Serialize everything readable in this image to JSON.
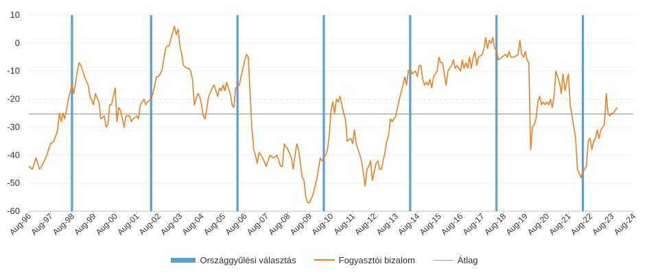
{
  "chart_data": {
    "type": "line",
    "title": "",
    "xlabel": "",
    "ylabel": "",
    "ylim": [
      -60,
      10
    ],
    "y_ticks": [
      "10",
      "0",
      "-10",
      "-20",
      "-30",
      "-40",
      "-50",
      "-60"
    ],
    "x_ticks": [
      "Aug-96",
      "Aug-97",
      "Aug-98",
      "Aug-99",
      "Aug-00",
      "Aug-01",
      "Aug-02",
      "Aug-03",
      "Aug-04",
      "Aug-05",
      "Aug-06",
      "Aug-07",
      "Aug-08",
      "Aug-09",
      "Aug-10",
      "Aug-11",
      "Aug-12",
      "Aug-13",
      "Aug-14",
      "Aug-15",
      "Aug-16",
      "Aug-17",
      "Aug-18",
      "Aug-19",
      "Aug-20",
      "Aug-21",
      "Aug-22",
      "Aug-23",
      "Aug-24"
    ],
    "grid": "horizontal",
    "legend_position": "bottom",
    "colors": {
      "elections": "#5a9fd4",
      "confidence": "#f07d1e",
      "average": "#a6a6a6"
    },
    "series": [
      {
        "name": "Fogyasztói bizalom",
        "points": [
          [
            "1996-08",
            -44
          ],
          [
            "1996-10",
            -45
          ],
          [
            "1996-12",
            -41
          ],
          [
            "1997-02",
            -45
          ],
          [
            "1997-04",
            -43
          ],
          [
            "1997-06",
            -40
          ],
          [
            "1997-08",
            -36
          ],
          [
            "1997-10",
            -35
          ],
          [
            "1997-12",
            -31
          ],
          [
            "1998-01",
            -25
          ],
          [
            "1998-02",
            -28
          ],
          [
            "1998-03",
            -25
          ],
          [
            "1998-04",
            -27
          ],
          [
            "1998-06",
            -20
          ],
          [
            "1998-08",
            -15
          ],
          [
            "1998-09",
            -18
          ],
          [
            "1998-10",
            -14
          ],
          [
            "1998-11",
            -10
          ],
          [
            "1998-12",
            -7
          ],
          [
            "1999-01",
            -8
          ],
          [
            "1999-03",
            -12
          ],
          [
            "1999-05",
            -15
          ],
          [
            "1999-06",
            -19
          ],
          [
            "1999-08",
            -22
          ],
          [
            "1999-09",
            -18
          ],
          [
            "1999-11",
            -21
          ],
          [
            "1999-12",
            -27
          ],
          [
            "2000-02",
            -26
          ],
          [
            "2000-03",
            -30
          ],
          [
            "2000-04",
            -29
          ],
          [
            "2000-05",
            -22
          ],
          [
            "2000-06",
            -22
          ],
          [
            "2000-07",
            -19
          ],
          [
            "2000-08",
            -16
          ],
          [
            "2000-09",
            -28
          ],
          [
            "2000-10",
            -23
          ],
          [
            "2000-11",
            -24
          ],
          [
            "2000-12",
            -27
          ],
          [
            "2001-01",
            -30
          ],
          [
            "2001-02",
            -26
          ],
          [
            "2001-04",
            -26
          ],
          [
            "2001-05",
            -28
          ],
          [
            "2001-06",
            -27
          ],
          [
            "2001-08",
            -26
          ],
          [
            "2001-09",
            -27
          ],
          [
            "2001-10",
            -22
          ],
          [
            "2001-12",
            -20
          ],
          [
            "2002-01",
            -22
          ],
          [
            "2002-02",
            -21
          ],
          [
            "2002-04",
            -20
          ],
          [
            "2002-05",
            -18
          ],
          [
            "2002-07",
            -12
          ],
          [
            "2002-08",
            -12
          ],
          [
            "2002-10",
            -10
          ],
          [
            "2002-12",
            -2
          ],
          [
            "2003-01",
            -1
          ],
          [
            "2003-02",
            -1
          ],
          [
            "2003-04",
            4
          ],
          [
            "2003-05",
            6
          ],
          [
            "2003-06",
            3
          ],
          [
            "2003-07",
            5
          ],
          [
            "2003-08",
            -1
          ],
          [
            "2003-09",
            -4
          ],
          [
            "2003-10",
            -8
          ],
          [
            "2003-12",
            -9
          ],
          [
            "2004-01",
            -9
          ],
          [
            "2004-02",
            -10
          ],
          [
            "2004-03",
            -13
          ],
          [
            "2004-04",
            -22
          ],
          [
            "2004-05",
            -20
          ],
          [
            "2004-06",
            -18
          ],
          [
            "2004-07",
            -19
          ],
          [
            "2004-08",
            -22
          ],
          [
            "2004-09",
            -26
          ],
          [
            "2004-10",
            -27
          ],
          [
            "2004-12",
            -19
          ],
          [
            "2005-02",
            -16
          ],
          [
            "2005-03",
            -15
          ],
          [
            "2005-05",
            -19
          ],
          [
            "2005-06",
            -16
          ],
          [
            "2005-07",
            -17
          ],
          [
            "2005-08",
            -15
          ],
          [
            "2005-09",
            -17
          ],
          [
            "2005-10",
            -14
          ],
          [
            "2005-12",
            -18
          ],
          [
            "2006-01",
            -22
          ],
          [
            "2006-02",
            -23
          ],
          [
            "2006-03",
            -16
          ],
          [
            "2006-05",
            -15
          ],
          [
            "2006-06",
            -12
          ],
          [
            "2006-07",
            -9
          ],
          [
            "2006-09",
            -4
          ],
          [
            "2006-10",
            -5
          ],
          [
            "2006-12",
            -30
          ],
          [
            "2007-01",
            -38
          ],
          [
            "2007-02",
            -40
          ],
          [
            "2007-03",
            -43
          ],
          [
            "2007-04",
            -39
          ],
          [
            "2007-06",
            -41
          ],
          [
            "2007-08",
            -44
          ],
          [
            "2007-10",
            -40
          ],
          [
            "2007-12",
            -41
          ],
          [
            "2008-02",
            -40
          ],
          [
            "2008-04",
            -44
          ],
          [
            "2008-05",
            -44
          ],
          [
            "2008-06",
            -36
          ],
          [
            "2008-08",
            -38
          ],
          [
            "2008-10",
            -41
          ],
          [
            "2008-11",
            -45
          ],
          [
            "2008-12",
            -40
          ],
          [
            "2009-01",
            -36
          ],
          [
            "2009-02",
            -38
          ],
          [
            "2009-04",
            -48
          ],
          [
            "2009-05",
            -49
          ],
          [
            "2009-06",
            -55
          ],
          [
            "2009-07",
            -57
          ],
          [
            "2009-08",
            -57
          ],
          [
            "2009-10",
            -54
          ],
          [
            "2009-12",
            -49
          ],
          [
            "2010-01",
            -45
          ],
          [
            "2010-02",
            -41
          ],
          [
            "2010-03",
            -42
          ],
          [
            "2010-05",
            -40
          ],
          [
            "2010-06",
            -38
          ],
          [
            "2010-07",
            -33
          ],
          [
            "2010-08",
            -24
          ],
          [
            "2010-09",
            -21
          ],
          [
            "2010-10",
            -25
          ],
          [
            "2010-11",
            -20
          ],
          [
            "2010-12",
            -21
          ],
          [
            "2011-01",
            -19
          ],
          [
            "2011-03",
            -25
          ],
          [
            "2011-04",
            -27
          ],
          [
            "2011-05",
            -35
          ],
          [
            "2011-07",
            -34
          ],
          [
            "2011-08",
            -36
          ],
          [
            "2011-09",
            -31
          ],
          [
            "2011-10",
            -36
          ],
          [
            "2011-12",
            -40
          ],
          [
            "2012-01",
            -42
          ],
          [
            "2012-03",
            -51
          ],
          [
            "2012-04",
            -45
          ],
          [
            "2012-05",
            -44
          ],
          [
            "2012-06",
            -42
          ],
          [
            "2012-07",
            -49
          ],
          [
            "2012-09",
            -43
          ],
          [
            "2012-10",
            -42
          ],
          [
            "2012-11",
            -45
          ],
          [
            "2012-12",
            -45
          ],
          [
            "2013-02",
            -39
          ],
          [
            "2013-03",
            -35
          ],
          [
            "2013-04",
            -33
          ],
          [
            "2013-05",
            -27
          ],
          [
            "2013-06",
            -28
          ],
          [
            "2013-08",
            -26
          ],
          [
            "2013-10",
            -20
          ],
          [
            "2013-12",
            -15
          ],
          [
            "2014-01",
            -12
          ],
          [
            "2014-02",
            -15
          ],
          [
            "2014-03",
            -10
          ],
          [
            "2014-04",
            -9
          ],
          [
            "2014-05",
            -11
          ],
          [
            "2014-07",
            -10
          ],
          [
            "2014-08",
            -12
          ],
          [
            "2014-09",
            -8
          ],
          [
            "2014-10",
            -8
          ],
          [
            "2014-11",
            -13
          ],
          [
            "2014-12",
            -15
          ],
          [
            "2015-01",
            -14
          ],
          [
            "2015-02",
            -15
          ],
          [
            "2015-03",
            -13
          ],
          [
            "2015-04",
            -16
          ],
          [
            "2015-05",
            -12
          ],
          [
            "2015-07",
            -10
          ],
          [
            "2015-08",
            -5
          ],
          [
            "2015-09",
            -7
          ],
          [
            "2015-10",
            -7
          ],
          [
            "2015-12",
            -15
          ],
          [
            "2016-01",
            -10
          ],
          [
            "2016-03",
            -8
          ],
          [
            "2016-04",
            -6
          ],
          [
            "2016-05",
            -9
          ],
          [
            "2016-06",
            -8
          ],
          [
            "2016-08",
            -10
          ],
          [
            "2016-09",
            -6
          ],
          [
            "2016-10",
            -9
          ],
          [
            "2016-11",
            -7
          ],
          [
            "2016-12",
            -9
          ],
          [
            "2017-01",
            -5
          ],
          [
            "2017-02",
            -9
          ],
          [
            "2017-03",
            -5
          ],
          [
            "2017-04",
            -3
          ],
          [
            "2017-05",
            -8
          ],
          [
            "2017-06",
            -5
          ],
          [
            "2017-08",
            -4
          ],
          [
            "2017-09",
            -2
          ],
          [
            "2017-10",
            2
          ],
          [
            "2017-11",
            -2
          ],
          [
            "2017-12",
            1
          ],
          [
            "2018-01",
            0
          ],
          [
            "2018-02",
            2
          ],
          [
            "2018-03",
            -2
          ],
          [
            "2018-04",
            -2
          ],
          [
            "2018-05",
            -6
          ],
          [
            "2018-07",
            -5
          ],
          [
            "2018-09",
            -4
          ],
          [
            "2018-10",
            -5
          ],
          [
            "2018-11",
            -3
          ],
          [
            "2018-12",
            -5
          ],
          [
            "2019-02",
            -5
          ],
          [
            "2019-04",
            -4
          ],
          [
            "2019-05",
            1
          ],
          [
            "2019-06",
            -4
          ],
          [
            "2019-07",
            -5
          ],
          [
            "2019-08",
            -3
          ],
          [
            "2019-09",
            -6
          ],
          [
            "2019-10",
            -7
          ],
          [
            "2019-11",
            -38
          ],
          [
            "2019-12",
            -30
          ],
          [
            "2020-01",
            -29
          ],
          [
            "2020-02",
            -27
          ],
          [
            "2020-03",
            -21
          ],
          [
            "2020-04",
            -19
          ],
          [
            "2020-05",
            -22
          ],
          [
            "2020-06",
            -21
          ],
          [
            "2020-07",
            -22
          ],
          [
            "2020-08",
            -21
          ],
          [
            "2020-09",
            -22
          ],
          [
            "2020-10",
            -20
          ],
          [
            "2020-11",
            -23
          ],
          [
            "2020-12",
            -19
          ],
          [
            "2021-01",
            -10
          ],
          [
            "2021-03",
            -14
          ],
          [
            "2021-04",
            -18
          ],
          [
            "2021-05",
            -11
          ],
          [
            "2021-06",
            -17
          ],
          [
            "2021-07",
            -14
          ],
          [
            "2021-08",
            -11
          ],
          [
            "2021-09",
            -22
          ],
          [
            "2021-10",
            -26
          ],
          [
            "2021-12",
            -34
          ],
          [
            "2022-01",
            -45
          ],
          [
            "2022-03",
            -48
          ],
          [
            "2022-04",
            -46
          ],
          [
            "2022-06",
            -44
          ],
          [
            "2022-07",
            -35
          ],
          [
            "2022-08",
            -34
          ],
          [
            "2022-09",
            -38
          ],
          [
            "2022-10",
            -35
          ],
          [
            "2022-11",
            -34
          ],
          [
            "2022-12",
            -31
          ],
          [
            "2023-01",
            -34
          ],
          [
            "2023-02",
            -31
          ],
          [
            "2023-03",
            -30
          ],
          [
            "2023-04",
            -29
          ],
          [
            "2023-05",
            -18
          ],
          [
            "2023-06",
            -25
          ],
          [
            "2023-07",
            -26
          ],
          [
            "2023-08",
            -25
          ],
          [
            "2023-09",
            -25
          ],
          [
            "2023-10",
            -24
          ],
          [
            "2023-11",
            -23
          ]
        ]
      },
      {
        "name": "Átlag",
        "value": -25.3
      },
      {
        "name": "Országgyűlési választás",
        "dates": [
          "1998-08",
          "2002-04",
          "2006-04",
          "2010-04",
          "2014-04",
          "2018-04",
          "2022-04"
        ]
      }
    ]
  }
}
